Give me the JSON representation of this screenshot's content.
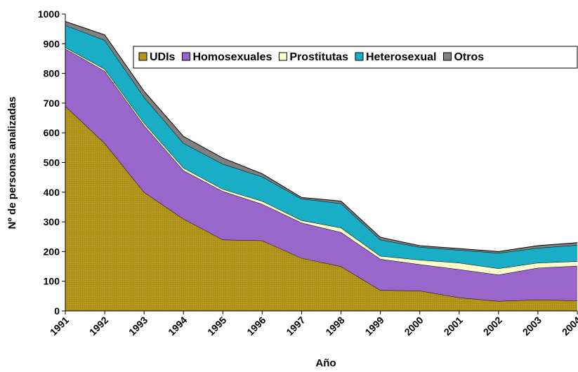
{
  "chart_data": {
    "type": "stacked_area",
    "x_label": "Año",
    "y_label": "Nº de personas analizadas",
    "categories": [
      "1991",
      "1992",
      "1993",
      "1994",
      "1995",
      "1996",
      "1997",
      "1998",
      "1999",
      "2000",
      "2001",
      "2002",
      "2003",
      "2004"
    ],
    "series": [
      {
        "name": "UDIs",
        "color": "#b5961c",
        "values": [
          690,
          565,
          400,
          310,
          240,
          237,
          178,
          150,
          70,
          68,
          45,
          33,
          38,
          35
        ]
      },
      {
        "name": "Homosexuales",
        "color": "#9966cc",
        "values": [
          193,
          243,
          225,
          163,
          163,
          123,
          119,
          115,
          105,
          89,
          95,
          89,
          107,
          117
        ]
      },
      {
        "name": "Prostitutas",
        "color": "#ffffcc",
        "values": [
          5,
          7,
          8,
          9,
          7,
          10,
          8,
          15,
          10,
          15,
          22,
          21,
          17,
          15
        ]
      },
      {
        "name": "Heterosexual",
        "color": "#1aaec6",
        "values": [
          74,
          97,
          87,
          83,
          85,
          82,
          73,
          82,
          55,
          43,
          43,
          52,
          50,
          55
        ]
      },
      {
        "name": "Otros",
        "color": "#808080",
        "values": [
          13,
          18,
          20,
          23,
          20,
          10,
          4,
          8,
          8,
          5,
          5,
          5,
          8,
          8
        ]
      }
    ],
    "ylim": [
      0,
      1000
    ],
    "yticks": [
      0,
      100,
      200,
      300,
      400,
      500,
      600,
      700,
      800,
      900,
      1000
    ],
    "legend": "top-right"
  }
}
